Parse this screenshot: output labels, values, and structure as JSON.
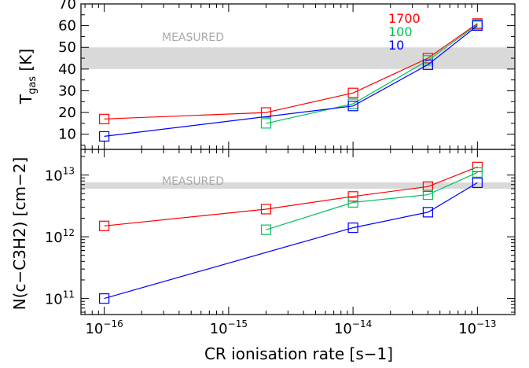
{
  "chart_data": [
    {
      "type": "line",
      "panel": "top",
      "ylabel_main": "T",
      "ylabel_sub": "gas",
      "ylabel_unit": "[K]",
      "xscale": "log",
      "xlim": [
        6.5e-17,
        2e-13
      ],
      "ylim": [
        3,
        70
      ],
      "yticks": [
        10,
        20,
        30,
        40,
        50,
        60,
        70
      ],
      "measured_band": [
        40,
        50
      ],
      "measured_label": "MEASURED",
      "legend": [
        "1700",
        "100",
        "10"
      ],
      "legend_placement": "top-right",
      "series": [
        {
          "name": "1700",
          "color": "#ff0000",
          "x": [
            1e-16,
            2e-15,
            1e-14,
            4e-14,
            1e-13
          ],
          "values": [
            17,
            20,
            29,
            45,
            61
          ]
        },
        {
          "name": "100",
          "color": "#00c060",
          "x": [
            2e-15,
            1e-14,
            4e-14,
            1e-13
          ],
          "values": [
            15,
            24,
            44,
            60.5
          ]
        },
        {
          "name": "10",
          "color": "#0000ff",
          "x": [
            1e-16,
            1e-14,
            4e-14,
            1e-13
          ],
          "values": [
            9,
            23,
            42,
            60
          ]
        }
      ]
    },
    {
      "type": "line",
      "panel": "bottom",
      "ylabel": "N(c−C3H2) [cm−2]",
      "xlabel": "CR ionisation rate [s−1]",
      "xscale": "log",
      "yscale": "log",
      "xlim": [
        6.5e-17,
        2e-13
      ],
      "ylim": [
        55000000000.0,
        26000000000000.0
      ],
      "xticks": [
        {
          "value": 1e-16,
          "base": "10",
          "exp": "−16"
        },
        {
          "value": 1e-15,
          "base": "10",
          "exp": "−15"
        },
        {
          "value": 1e-14,
          "base": "10",
          "exp": "−14"
        },
        {
          "value": 1e-13,
          "base": "10",
          "exp": "−13"
        }
      ],
      "yticks": [
        {
          "value": 100000000000.0,
          "base": "10",
          "exp": "11"
        },
        {
          "value": 1000000000000.0,
          "base": "10",
          "exp": "12"
        },
        {
          "value": 10000000000000.0,
          "base": "10",
          "exp": "13"
        }
      ],
      "measured_band": [
        6000000000000.0,
        7600000000000.0
      ],
      "measured_label": "MEASURED",
      "series": [
        {
          "name": "1700",
          "color": "#ff0000",
          "x": [
            1e-16,
            2e-15,
            1e-14,
            4e-14,
            1e-13
          ],
          "values": [
            1500000000000.0,
            2800000000000.0,
            4500000000000.0,
            6500000000000.0,
            13500000000000.0
          ]
        },
        {
          "name": "100",
          "color": "#00c060",
          "x": [
            2e-15,
            1e-14,
            4e-14,
            1e-13
          ],
          "values": [
            1300000000000.0,
            3600000000000.0,
            4800000000000.0,
            11000000000000.0
          ]
        },
        {
          "name": "10",
          "color": "#0000ff",
          "x": [
            1e-16,
            1e-14,
            4e-14,
            1e-13
          ],
          "values": [
            100000000000.0,
            1400000000000.0,
            2500000000000.0,
            7500000000000.0
          ]
        }
      ]
    }
  ]
}
